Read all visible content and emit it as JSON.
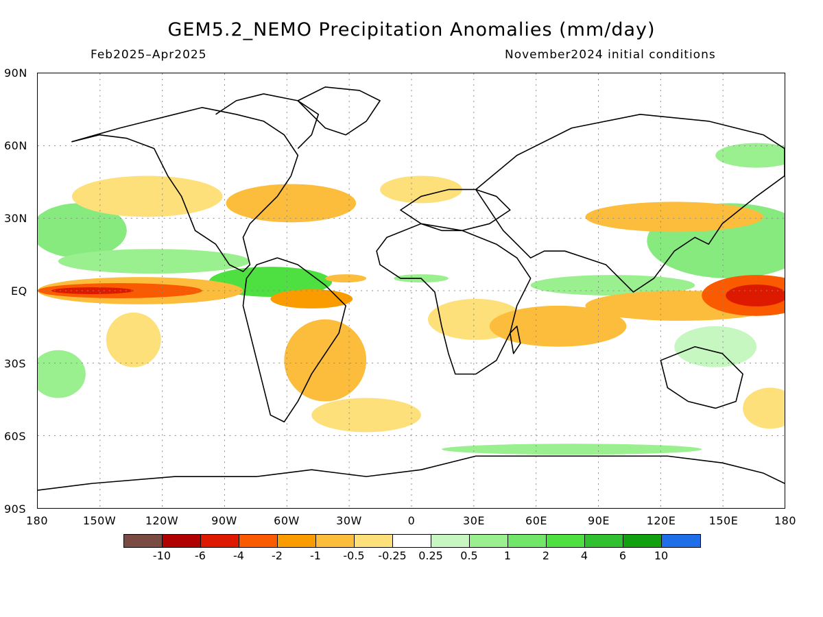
{
  "title": "GEM5.2_NEMO Precipitation Anomalies (mm/day)",
  "period": "Feb2025–Apr2025",
  "init": "November2024 initial conditions",
  "lat_labels": [
    "90N",
    "60N",
    "30N",
    "EQ",
    "30S",
    "60S",
    "90S"
  ],
  "lon_labels": [
    "180",
    "150W",
    "120W",
    "90W",
    "60W",
    "30W",
    "0",
    "30E",
    "60E",
    "90E",
    "120E",
    "150E",
    "180"
  ],
  "legend": {
    "colors": [
      "#7a4b42",
      "#b00000",
      "#dd1a00",
      "#fa5a00",
      "#fa9c00",
      "#fcbc3c",
      "#fde07a",
      "#ffffff",
      "#c6f7c0",
      "#9aef8e",
      "#72e668",
      "#4ee040",
      "#30c030",
      "#10a010",
      "#1e6ee8"
    ],
    "labels": [
      "-10",
      "-6",
      "-4",
      "-2",
      "-1",
      "-0.5",
      "-0.25",
      "0.25",
      "0.5",
      "1",
      "2",
      "4",
      "6",
      "10"
    ]
  }
}
